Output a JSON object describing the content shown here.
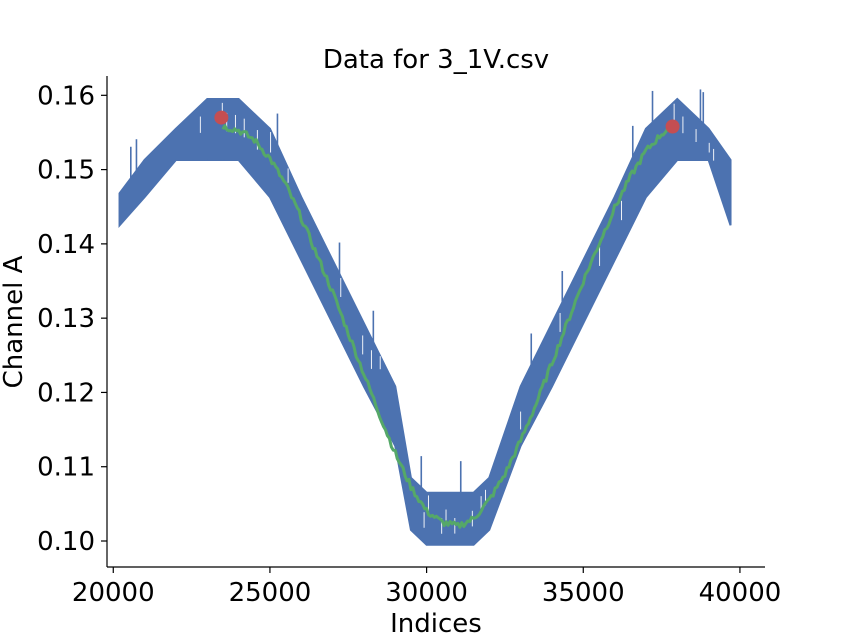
{
  "chart_data": {
    "type": "line",
    "title": "Data for 3_1V.csv",
    "xlabel": "Indices",
    "ylabel": "Channel A",
    "xlim": [
      19800,
      40800
    ],
    "ylim": [
      0.0965,
      0.1626
    ],
    "xticks": [
      20000,
      25000,
      30000,
      35000,
      40000
    ],
    "xtick_labels": [
      "20000",
      "25000",
      "30000",
      "35000",
      "40000"
    ],
    "yticks": [
      0.1,
      0.11,
      0.12,
      0.13,
      0.14,
      0.15,
      0.16
    ],
    "ytick_labels": [
      "0.10",
      "0.11",
      "0.12",
      "0.13",
      "0.14",
      "0.15",
      "0.16"
    ],
    "grid": false,
    "legend": "none",
    "series": [
      {
        "role": "raw-signal",
        "color": "#4c72b0",
        "x": [
          20200,
          21000,
          22000,
          23000,
          24000,
          25000,
          26000,
          27000,
          28000,
          29000,
          29500,
          30000,
          30500,
          31000,
          31500,
          32000,
          33000,
          34000,
          35000,
          36000,
          37000,
          38000,
          39000,
          39700
        ],
        "band_low": [
          0.1425,
          0.1463,
          0.1513,
          0.1513,
          0.1513,
          0.1463,
          0.1378,
          0.1293,
          0.1208,
          0.1128,
          0.1015,
          0.0995,
          0.0995,
          0.0995,
          0.0995,
          0.1015,
          0.1128,
          0.1208,
          0.1293,
          0.1378,
          0.1463,
          0.1513,
          0.1513,
          0.1425
        ],
        "band_high": [
          0.1468,
          0.1513,
          0.1555,
          0.1595,
          0.1595,
          0.1555,
          0.1463,
          0.1378,
          0.1293,
          0.1208,
          0.1085,
          0.1065,
          0.1065,
          0.1065,
          0.1065,
          0.1085,
          0.1208,
          0.1293,
          0.1378,
          0.1463,
          0.1555,
          0.1595,
          0.1555,
          0.1513
        ]
      },
      {
        "role": "smoothed-signal",
        "color": "#55a868",
        "x": [
          23500,
          24000,
          24500,
          25000,
          25500,
          26000,
          26500,
          27000,
          27500,
          28000,
          28500,
          29000,
          29500,
          30000,
          30500,
          31000,
          31500,
          32000,
          32500,
          33000,
          33500,
          34000,
          34500,
          35000,
          35500,
          36000,
          36500,
          37000,
          37500,
          37900
        ],
        "y": [
          0.1558,
          0.1553,
          0.154,
          0.1515,
          0.148,
          0.1435,
          0.1385,
          0.1335,
          0.128,
          0.1225,
          0.117,
          0.1118,
          0.1073,
          0.104,
          0.1025,
          0.102,
          0.103,
          0.1055,
          0.109,
          0.1135,
          0.1185,
          0.124,
          0.1295,
          0.135,
          0.14,
          0.1448,
          0.149,
          0.1525,
          0.1548,
          0.1558
        ]
      }
    ],
    "markers": {
      "color": "#c44e52",
      "points": [
        {
          "x": 23450,
          "y": 0.157
        },
        {
          "x": 37850,
          "y": 0.1558
        }
      ]
    }
  }
}
